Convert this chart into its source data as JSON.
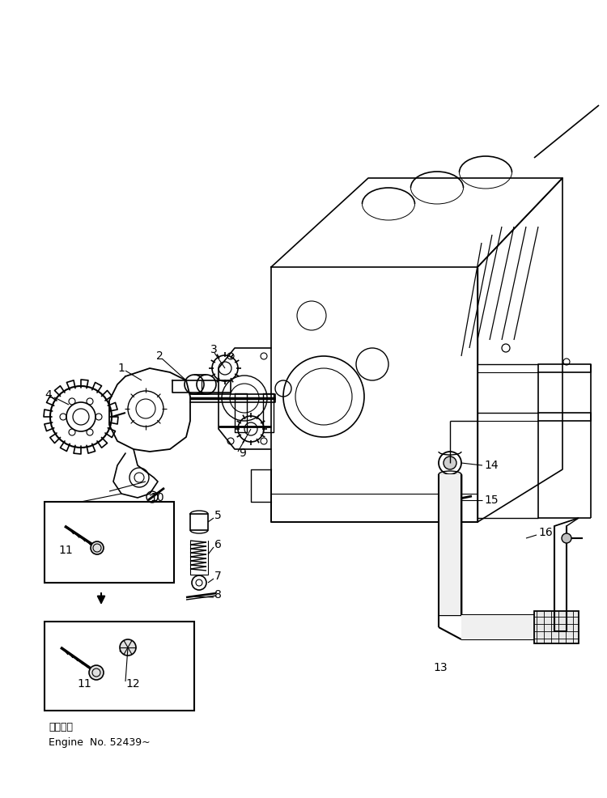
{
  "bg_color": "#ffffff",
  "line_color": "#000000",
  "fig_width": 7.5,
  "fig_height": 9.86,
  "dpi": 100,
  "bottom_text_line1": "適用号機",
  "bottom_text_line2": "Engine  No. 52439~"
}
